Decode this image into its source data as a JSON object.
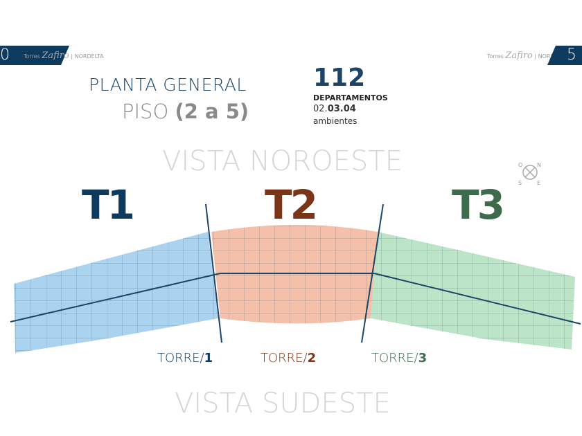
{
  "header": {
    "left_page": "0",
    "right_page": "5",
    "brand_prefix": "Torres",
    "brand_script": "Zafiro",
    "brand_suffix": "| NORDELTA"
  },
  "title": {
    "line1": "PLANTA GENERAL",
    "line2_prefix": "PISO",
    "line2_bold": "(2 a 5)"
  },
  "summary": {
    "count": "112",
    "label": "DEPARTAMENTOS",
    "types_prefix": "02.",
    "types_bold": "03.04",
    "units": "ambientes"
  },
  "views": {
    "top": "VISTA NOROESTE",
    "bottom": "VISTA SUDESTE"
  },
  "compass": {
    "icon": "compass-icon",
    "n": "N",
    "o": "O",
    "s": "S",
    "e": "E"
  },
  "towers": [
    {
      "name": "T1",
      "label": "TORRE/",
      "num": "1",
      "color": "#0e3a5e",
      "fill": "#8cc4ea"
    },
    {
      "name": "T2",
      "label": "TORRE/",
      "num": "2",
      "color": "#7a3418",
      "fill": "#f2ab8e"
    },
    {
      "name": "T3",
      "label": "TORRE/",
      "num": "3",
      "color": "#3d6b4c",
      "fill": "#a5dcb6"
    }
  ]
}
